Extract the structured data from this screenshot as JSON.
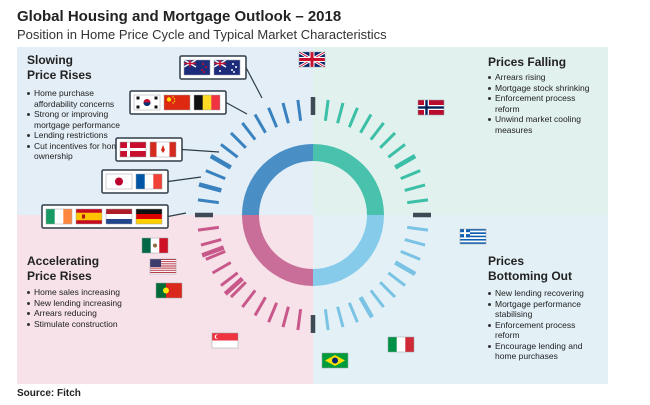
{
  "header": {
    "title": "Global Housing and Mortgage Outlook – 2018",
    "subtitle": "Position in Home Price Cycle and Typical Market Characteristics"
  },
  "quadrants": {
    "slowing": {
      "title": "Slowing\nPrice Rises",
      "items": [
        "Home purchase affordability concerns",
        "Strong or improving mortgage performance",
        "Lending restrictions",
        "Cut incentives for home ownership"
      ]
    },
    "falling": {
      "title": "Prices Falling",
      "items": [
        "Arrears rising",
        "Mortgage stock shrinking",
        "Enforcement process reform",
        "Unwind market cooling measures"
      ]
    },
    "accelerating": {
      "title": "Accelerating\nPrice Rises",
      "items": [
        "Home sales increasing",
        "New lending increasing",
        "Arrears reducing",
        "Stimulate construction"
      ]
    },
    "bottoming": {
      "title": "Prices\nBottoming Out",
      "items": [
        "New lending recovering",
        "Mortgage performance stabilising",
        "Enforcement process reform",
        "Encourage lending and home purchases"
      ]
    }
  },
  "colors": {
    "slowing": "#3a82bf",
    "falling": "#3bbfa6",
    "accelerating": "#c8578a",
    "bottoming": "#7ac3e4",
    "ring_slowing": "#4a8ec6",
    "ring_falling": "#48c2ac",
    "ring_accelerating": "#c86e98",
    "ring_bottoming": "#86cbe9"
  },
  "flag_groups": [
    {
      "group": "slowing-1",
      "flags": [
        "new-zealand",
        "australia"
      ]
    },
    {
      "group": "slowing-2",
      "flags": [
        "south-korea",
        "china",
        "belgium"
      ]
    },
    {
      "group": "slowing-3",
      "flags": [
        "denmark",
        "canada"
      ]
    },
    {
      "group": "slowing-4",
      "flags": [
        "japan",
        "france"
      ]
    },
    {
      "group": "slowing-5",
      "flags": [
        "ireland",
        "spain",
        "netherlands",
        "germany"
      ]
    },
    {
      "group": "uk",
      "flags": [
        "united-kingdom"
      ]
    },
    {
      "group": "norway",
      "flags": [
        "norway"
      ]
    },
    {
      "group": "greece",
      "flags": [
        "greece"
      ]
    },
    {
      "group": "mexico",
      "flags": [
        "mexico"
      ]
    },
    {
      "group": "usa",
      "flags": [
        "united-states"
      ]
    },
    {
      "group": "portugal",
      "flags": [
        "portugal"
      ]
    },
    {
      "group": "singapore",
      "flags": [
        "singapore"
      ]
    },
    {
      "group": "brazil",
      "flags": [
        "brazil"
      ]
    },
    {
      "group": "italy",
      "flags": [
        "italy"
      ]
    }
  ],
  "footer": {
    "source": "Source: Fitch"
  }
}
